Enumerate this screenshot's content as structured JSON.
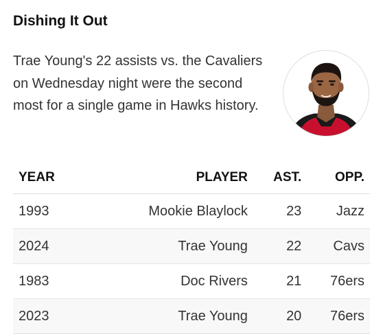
{
  "article": {
    "title": "Dishing It Out",
    "description": "Trae Young's 22 assists vs. the Cavaliers on Wednesday night were the second most for a single game in Hawks history."
  },
  "avatar": {
    "icon": "player-headshot-icon",
    "jersey_color": "#c8102e"
  },
  "table": {
    "headers": {
      "year": "YEAR",
      "player": "PLAYER",
      "ast": "AST.",
      "opp": "OPP."
    },
    "rows": [
      {
        "year": "1993",
        "player": "Mookie Blaylock",
        "ast": "23",
        "opp": "Jazz"
      },
      {
        "year": "2024",
        "player": "Trae Young",
        "ast": "22",
        "opp": "Cavs"
      },
      {
        "year": "1983",
        "player": "Doc Rivers",
        "ast": "21",
        "opp": "76ers"
      },
      {
        "year": "2023",
        "player": "Trae Young",
        "ast": "20",
        "opp": "76ers"
      }
    ]
  }
}
